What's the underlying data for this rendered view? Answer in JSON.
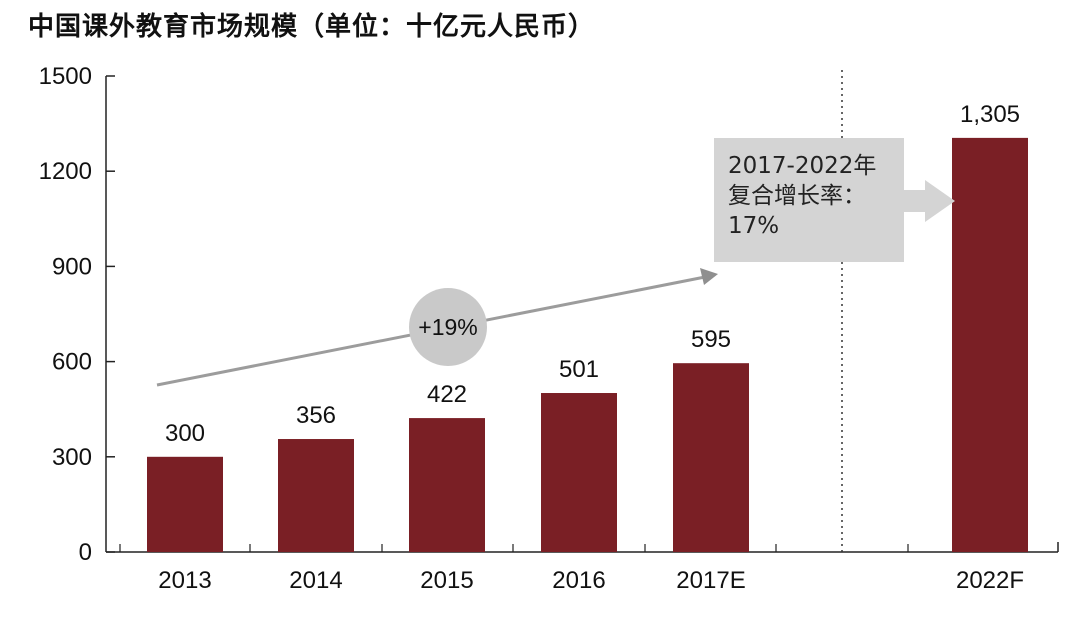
{
  "chart_data": {
    "type": "bar",
    "title": "中国课外教育市场规模（单位：十亿元人民币）",
    "categories": [
      "2013",
      "2014",
      "2015",
      "2016",
      "2017E",
      "2022F"
    ],
    "values": [
      300,
      356,
      422,
      501,
      595,
      1305
    ],
    "value_labels": [
      "300",
      "356",
      "422",
      "501",
      "595",
      "1,305"
    ],
    "y_ticks": [
      "0",
      "300",
      "600",
      "900",
      "1200",
      "1500"
    ],
    "ylim": [
      0,
      1500
    ],
    "grid": false,
    "bar_color": "#7a1f25",
    "annotations": {
      "growth_badge": "+19%",
      "cagr_note_lines": [
        "2017-2022年",
        "复合增长率：",
        "17%"
      ]
    }
  }
}
